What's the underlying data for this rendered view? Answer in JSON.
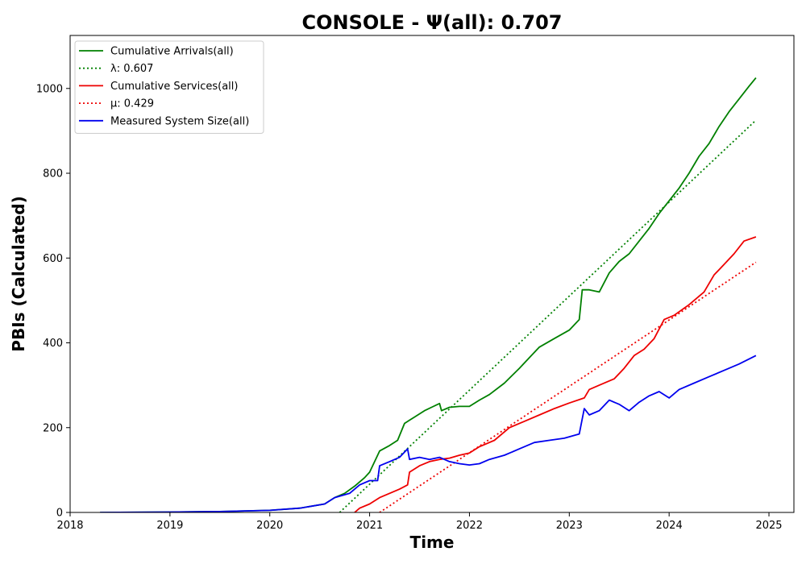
{
  "chart_data": {
    "type": "line",
    "title": "CONSOLE -  Ψ(all): 0.707",
    "xlabel": "Time",
    "ylabel": "PBIs (Calculated)",
    "xlim": [
      2018.0,
      2025.25
    ],
    "ylim": [
      0,
      1125
    ],
    "x_ticks": [
      "2018",
      "2019",
      "2020",
      "2021",
      "2022",
      "2023",
      "2024",
      "2025"
    ],
    "y_ticks": [
      0,
      200,
      400,
      600,
      800,
      1000
    ],
    "grid": false,
    "legend_position": "top-left",
    "series": [
      {
        "name": "Cumulative Arrivals(all)",
        "style": "solid",
        "color": "#008000",
        "x": [
          2018.3,
          2019.0,
          2019.5,
          2020.0,
          2020.3,
          2020.55,
          2020.65,
          2020.75,
          2020.85,
          2020.95,
          2021.0,
          2021.1,
          2021.2,
          2021.28,
          2021.35,
          2021.45,
          2021.55,
          2021.62,
          2021.7,
          2021.72,
          2021.8,
          2021.9,
          2022.0,
          2022.1,
          2022.2,
          2022.35,
          2022.5,
          2022.6,
          2022.7,
          2022.85,
          2023.0,
          2023.1,
          2023.13,
          2023.2,
          2023.3,
          2023.4,
          2023.5,
          2023.6,
          2023.7,
          2023.8,
          2023.9,
          2024.0,
          2024.1,
          2024.2,
          2024.3,
          2024.4,
          2024.5,
          2024.6,
          2024.7,
          2024.8,
          2024.87
        ],
        "y": [
          0,
          1,
          2,
          5,
          10,
          20,
          35,
          45,
          62,
          82,
          95,
          145,
          158,
          170,
          210,
          225,
          240,
          248,
          257,
          240,
          248,
          250,
          250,
          265,
          278,
          305,
          340,
          365,
          390,
          410,
          430,
          455,
          525,
          525,
          520,
          565,
          592,
          610,
          640,
          670,
          705,
          735,
          765,
          800,
          840,
          870,
          910,
          945,
          975,
          1005,
          1025
        ]
      },
      {
        "name": "λ: 0.607",
        "style": "dotted",
        "color": "#008000",
        "x": [
          2020.7,
          2024.87
        ],
        "y": [
          0,
          925
        ]
      },
      {
        "name": "Cumulative Services(all)",
        "style": "solid",
        "color": "#ee0000",
        "x": [
          2020.85,
          2020.9,
          2021.0,
          2021.1,
          2021.2,
          2021.3,
          2021.38,
          2021.4,
          2021.5,
          2021.6,
          2021.7,
          2021.8,
          2021.9,
          2022.0,
          2022.1,
          2022.25,
          2022.4,
          2022.55,
          2022.7,
          2022.85,
          2023.0,
          2023.15,
          2023.2,
          2023.3,
          2023.45,
          2023.55,
          2023.65,
          2023.75,
          2023.85,
          2023.95,
          2024.05,
          2024.2,
          2024.35,
          2024.45,
          2024.55,
          2024.65,
          2024.75,
          2024.87
        ],
        "y": [
          0,
          10,
          20,
          35,
          45,
          55,
          65,
          95,
          110,
          120,
          125,
          128,
          135,
          140,
          155,
          170,
          200,
          215,
          230,
          245,
          258,
          270,
          290,
          300,
          315,
          340,
          370,
          385,
          410,
          455,
          465,
          490,
          520,
          560,
          585,
          610,
          640,
          650
        ]
      },
      {
        "name": "μ: 0.429",
        "style": "dotted",
        "color": "#ee0000",
        "x": [
          2021.1,
          2024.87
        ],
        "y": [
          0,
          590
        ]
      },
      {
        "name": "Measured System Size(all)",
        "style": "solid",
        "color": "#0000ee",
        "x": [
          2018.3,
          2019.0,
          2019.5,
          2020.0,
          2020.3,
          2020.55,
          2020.65,
          2020.8,
          2020.9,
          2021.0,
          2021.08,
          2021.1,
          2021.2,
          2021.3,
          2021.38,
          2021.4,
          2021.5,
          2021.6,
          2021.7,
          2021.8,
          2021.9,
          2022.0,
          2022.1,
          2022.2,
          2022.35,
          2022.5,
          2022.65,
          2022.8,
          2022.95,
          2023.1,
          2023.15,
          2023.2,
          2023.3,
          2023.4,
          2023.5,
          2023.6,
          2023.7,
          2023.8,
          2023.9,
          2024.0,
          2024.1,
          2024.25,
          2024.4,
          2024.55,
          2024.7,
          2024.87
        ],
        "y": [
          0,
          1,
          2,
          5,
          10,
          20,
          35,
          45,
          65,
          75,
          75,
          110,
          120,
          130,
          150,
          125,
          130,
          125,
          130,
          120,
          115,
          112,
          115,
          125,
          135,
          150,
          165,
          170,
          175,
          185,
          245,
          230,
          240,
          265,
          255,
          240,
          260,
          275,
          285,
          270,
          290,
          305,
          320,
          335,
          350,
          370
        ]
      }
    ]
  }
}
